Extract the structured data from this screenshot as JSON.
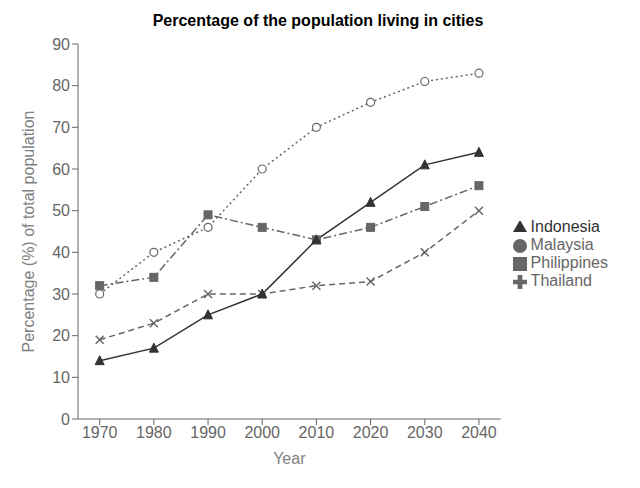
{
  "chart_data": {
    "type": "line",
    "title": "Percentage of the population living in cities",
    "xlabel": "Year",
    "ylabel": "Percentage (%) of total population",
    "x": [
      1970,
      1980,
      1990,
      2000,
      2010,
      2020,
      2030,
      2040
    ],
    "xlim": [
      1966,
      2044
    ],
    "xticks": [
      1970,
      1980,
      1990,
      2000,
      2010,
      2020,
      2030,
      2040
    ],
    "ylim": [
      0,
      90
    ],
    "yticks": [
      0,
      10,
      20,
      30,
      40,
      50,
      60,
      70,
      80,
      90
    ],
    "grid": false,
    "legend": "right",
    "series": [
      {
        "name": "Philippines",
        "color": "#666666",
        "values": [
          32,
          34,
          49,
          46,
          43,
          46,
          51,
          56
        ],
        "marker": "square",
        "line_style": "dashdot"
      },
      {
        "name": "Malaysia",
        "color": "#666666",
        "values": [
          30,
          40,
          46,
          60,
          70,
          76,
          81,
          83
        ],
        "marker": "circle-open",
        "line_style": "dotted"
      },
      {
        "name": "Thailand",
        "color": "#666666",
        "values": [
          19,
          23,
          30,
          30,
          32,
          33,
          40,
          50
        ],
        "marker": "x",
        "line_style": "dashed"
      },
      {
        "name": "Indonesia",
        "color": "#333333",
        "values": [
          14,
          17,
          25,
          30,
          43,
          52,
          61,
          64
        ],
        "marker": "triangle",
        "line_style": "solid"
      }
    ]
  }
}
